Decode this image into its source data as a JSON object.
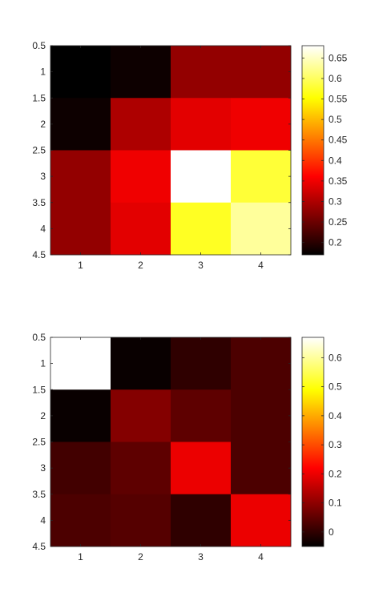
{
  "chart_data": [
    {
      "type": "heatmap",
      "colormap": "hot",
      "x": [
        1,
        2,
        3,
        4
      ],
      "y": [
        1,
        2,
        3,
        4
      ],
      "xticks": [
        "1",
        "2",
        "3",
        "4"
      ],
      "yticks": [
        "0.5",
        "1",
        "1.5",
        "2",
        "2.5",
        "3",
        "3.5",
        "4",
        "4.5"
      ],
      "xlim": [
        0.5,
        4.5
      ],
      "ylim": [
        0.5,
        4.5
      ],
      "y_direction": "reverse",
      "values": [
        [
          0.17,
          0.18,
          0.28,
          0.28
        ],
        [
          0.18,
          0.3,
          0.34,
          0.35
        ],
        [
          0.28,
          0.35,
          0.68,
          0.58
        ],
        [
          0.28,
          0.34,
          0.57,
          0.63
        ]
      ],
      "clim": [
        0.17,
        0.68
      ],
      "colorbar": {
        "ticks": [
          0.2,
          0.25,
          0.3,
          0.35,
          0.4,
          0.45,
          0.5,
          0.55,
          0.6,
          0.65
        ],
        "tick_labels": [
          "0.2",
          "0.25",
          "0.3",
          "0.35",
          "0.4",
          "0.45",
          "0.5",
          "0.55",
          "0.6",
          "0.65"
        ],
        "location": "right"
      },
      "grid": false
    },
    {
      "type": "heatmap",
      "colormap": "hot",
      "x": [
        1,
        2,
        3,
        4
      ],
      "y": [
        1,
        2,
        3,
        4
      ],
      "xticks": [
        "1",
        "2",
        "3",
        "4"
      ],
      "yticks": [
        "0.5",
        "1",
        "1.5",
        "2",
        "2.5",
        "3",
        "3.5",
        "4",
        "4.5"
      ],
      "xlim": [
        0.5,
        4.5
      ],
      "ylim": [
        0.5,
        4.5
      ],
      "y_direction": "reverse",
      "values": [
        [
          0.67,
          -0.04,
          0.0,
          0.03
        ],
        [
          -0.04,
          0.09,
          0.05,
          0.03
        ],
        [
          0.02,
          0.05,
          0.2,
          0.03
        ],
        [
          0.03,
          0.04,
          0.0,
          0.2
        ]
      ],
      "clim": [
        -0.05,
        0.67
      ],
      "colorbar": {
        "ticks": [
          0,
          0.1,
          0.2,
          0.3,
          0.4,
          0.5,
          0.6
        ],
        "tick_labels": [
          "0",
          "0.1",
          "0.2",
          "0.3",
          "0.4",
          "0.5",
          "0.6"
        ],
        "location": "right"
      },
      "grid": false
    }
  ]
}
